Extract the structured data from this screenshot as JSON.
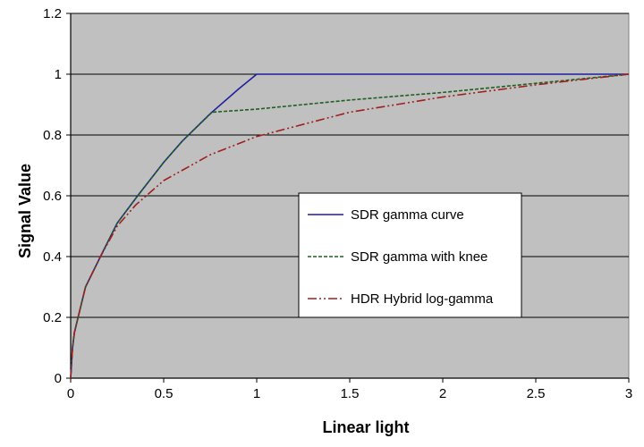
{
  "chart_data": {
    "type": "line",
    "title": "",
    "xlabel": "Linear light",
    "ylabel": "Signal Value",
    "xlim": [
      0,
      3
    ],
    "ylim": [
      0,
      1.2
    ],
    "x_ticks": [
      0,
      0.5,
      1,
      1.5,
      2,
      2.5,
      3
    ],
    "y_ticks": [
      0,
      0.2,
      0.4,
      0.6,
      0.8,
      1,
      1.2
    ],
    "x_tick_labels": [
      "0",
      "0.5",
      "1",
      "1.5",
      "2",
      "2.5",
      "3"
    ],
    "y_tick_labels": [
      "0",
      "0.2",
      "0.4",
      "0.6",
      "0.8",
      "1",
      "1.2"
    ],
    "grid": "horizontal",
    "plot_background": "#c0c0c0",
    "legend_placement": "center-right",
    "series": [
      {
        "name": "SDR gamma curve",
        "color": "#1f1fa0",
        "dash": "solid",
        "points": [
          [
            0,
            0
          ],
          [
            0.01,
            0.1
          ],
          [
            0.02,
            0.15
          ],
          [
            0.04,
            0.2
          ],
          [
            0.08,
            0.3
          ],
          [
            0.16,
            0.4
          ],
          [
            0.25,
            0.51
          ],
          [
            0.36,
            0.6
          ],
          [
            0.5,
            0.71
          ],
          [
            0.6,
            0.78
          ],
          [
            0.75,
            0.87
          ],
          [
            0.9,
            0.95
          ],
          [
            1,
            1
          ],
          [
            3,
            1
          ]
        ]
      },
      {
        "name": "SDR gamma with knee",
        "color": "#1f5f1f",
        "dash": "dashed",
        "points": [
          [
            0,
            0
          ],
          [
            0.01,
            0.1
          ],
          [
            0.02,
            0.15
          ],
          [
            0.04,
            0.2
          ],
          [
            0.08,
            0.3
          ],
          [
            0.16,
            0.4
          ],
          [
            0.25,
            0.51
          ],
          [
            0.36,
            0.6
          ],
          [
            0.5,
            0.71
          ],
          [
            0.6,
            0.78
          ],
          [
            0.76,
            0.875
          ],
          [
            1,
            0.885
          ],
          [
            1.5,
            0.915
          ],
          [
            2,
            0.94
          ],
          [
            2.5,
            0.97
          ],
          [
            3,
            1
          ]
        ]
      },
      {
        "name": "HDR Hybrid log-gamma",
        "color": "#a01f1f",
        "dash": "dash-dot-dot",
        "points": [
          [
            0,
            0
          ],
          [
            0.01,
            0.1
          ],
          [
            0.02,
            0.15
          ],
          [
            0.04,
            0.2
          ],
          [
            0.08,
            0.3
          ],
          [
            0.16,
            0.4
          ],
          [
            0.25,
            0.5
          ],
          [
            0.35,
            0.57
          ],
          [
            0.5,
            0.65
          ],
          [
            0.75,
            0.735
          ],
          [
            1,
            0.795
          ],
          [
            1.5,
            0.875
          ],
          [
            2,
            0.925
          ],
          [
            2.5,
            0.965
          ],
          [
            3,
            1
          ]
        ]
      }
    ]
  }
}
